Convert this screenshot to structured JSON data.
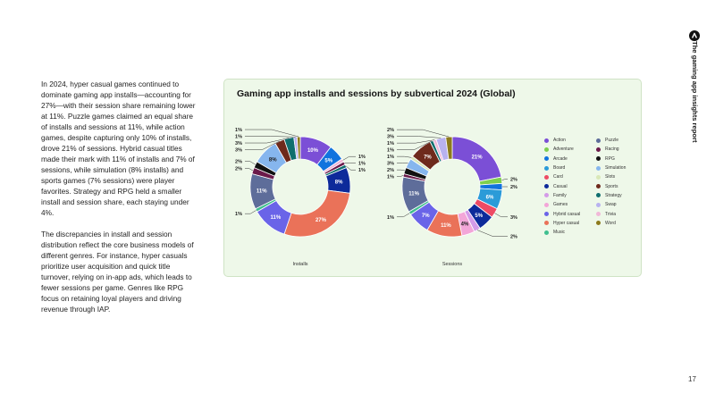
{
  "page": {
    "body_paragraphs": [
      "In 2024, hyper casual games continued to dominate gaming app installs—accounting for 27%—with their session share remaining lower at 11%. Puzzle games claimed an equal share of installs and sessions at 11%, while action games, despite capturing only 10% of installs, drove 21% of sessions. Hybrid casual titles made their mark with 11% of installs and 7% of sessions, while simulation (8% installs) and sports games (7% sessions) were player favorites. Strategy and RPG held a smaller install and session share, each staying under 4%.",
      "The discrepancies in install and session distribution reflect the core business models of different genres. For instance, hyper casuals prioritize user acquisition and quick title turnover, relying on in-app ads, which leads to fewer sessions per game. Genres like RPG focus on retaining loyal players and driving revenue through IAP."
    ],
    "side_title": "The gaming app insights report",
    "page_number": "17",
    "brand_icon": "brand-logo-icon"
  },
  "chart_data": {
    "type": "pie",
    "donut": true,
    "title": "Gaming app installs and sessions by subvertical 2024 (Global)",
    "legend_position": "right",
    "categories": [
      "Action",
      "Adventure",
      "Arcade",
      "Board",
      "Card",
      "Casual",
      "Family",
      "Games",
      "Hybrid casual",
      "Hyper casual",
      "Music",
      "Puzzle",
      "Racing",
      "RPG",
      "Simulation",
      "Slots",
      "Sports",
      "Strategy",
      "Swap",
      "Trivia",
      "Word"
    ],
    "colors": [
      "#7b4fd6",
      "#7fcf4f",
      "#1173de",
      "#2b9bd8",
      "#ee4b64",
      "#0d2a9a",
      "#d49be8",
      "#f3a6d8",
      "#6a64e8",
      "#ea7259",
      "#3fbf8f",
      "#5e6d9a",
      "#6b1a4a",
      "#111111",
      "#86b6ee",
      "#d9e8b8",
      "#6e2a1c",
      "#0f6e6e",
      "#b8b2f0",
      "#f1b8d8",
      "#8c7a1c"
    ],
    "series": [
      {
        "name": "Installs",
        "slices": [
          {
            "category": "Action",
            "value": 10,
            "label": "10%"
          },
          {
            "category": "Arcade",
            "value": 5,
            "label": "5%"
          },
          {
            "category": "Trivia",
            "value": 1,
            "label": "1%"
          },
          {
            "category": "Racing",
            "value": 1,
            "label": "1%"
          },
          {
            "category": "Strategy",
            "value": 1,
            "label": "1%"
          },
          {
            "category": "Casual",
            "value": 8,
            "label": "8%"
          },
          {
            "category": "Hyper casual",
            "value": 27,
            "label": "27%"
          },
          {
            "category": "Hybrid casual",
            "value": 11,
            "label": "11%"
          },
          {
            "category": "Music",
            "value": 1,
            "label": "1%"
          },
          {
            "category": "Puzzle",
            "value": 11,
            "label": "11%"
          },
          {
            "category": "Racing",
            "value": 2,
            "label": "2%"
          },
          {
            "category": "RPG",
            "value": 2,
            "label": "2%"
          },
          {
            "category": "Simulation",
            "value": 8,
            "label": "8%"
          },
          {
            "category": "Sports",
            "value": 3,
            "label": "3%"
          },
          {
            "category": "Strategy",
            "value": 3,
            "label": "3%"
          },
          {
            "category": "Swap",
            "value": 1,
            "label": "1%"
          },
          {
            "category": "Word",
            "value": 1,
            "label": "1%"
          }
        ]
      },
      {
        "name": "Sessions",
        "slices": [
          {
            "category": "Action",
            "value": 21,
            "label": "21%"
          },
          {
            "category": "Adventure",
            "value": 2,
            "label": "2%"
          },
          {
            "category": "Arcade",
            "value": 2,
            "label": "2%"
          },
          {
            "category": "Board",
            "value": 6,
            "label": "6%"
          },
          {
            "category": "Card",
            "value": 3,
            "label": "3%"
          },
          {
            "category": "Casual",
            "value": 5,
            "label": "5%"
          },
          {
            "category": "Family",
            "value": 2,
            "label": "2%"
          },
          {
            "category": "Games",
            "value": 4,
            "label": "4%"
          },
          {
            "category": "Hyper casual",
            "value": 11,
            "label": "11%"
          },
          {
            "category": "Hybrid casual",
            "value": 7,
            "label": "7%"
          },
          {
            "category": "Music",
            "value": 1,
            "label": "1%"
          },
          {
            "category": "Puzzle",
            "value": 11,
            "label": "11%"
          },
          {
            "category": "Racing",
            "value": 1,
            "label": "1%"
          },
          {
            "category": "RPG",
            "value": 2,
            "label": "2%"
          },
          {
            "category": "Simulation",
            "value": 3,
            "label": "3%"
          },
          {
            "category": "Slots",
            "value": 1,
            "label": "1%"
          },
          {
            "category": "Sports",
            "value": 7,
            "label": "7%"
          },
          {
            "category": "Strategy",
            "value": 1,
            "label": "1%"
          },
          {
            "category": "Trivia",
            "value": 1,
            "label": "1%"
          },
          {
            "category": "Swap",
            "value": 3,
            "label": "3%"
          },
          {
            "category": "Word",
            "value": 2,
            "label": "2%"
          }
        ]
      }
    ]
  }
}
